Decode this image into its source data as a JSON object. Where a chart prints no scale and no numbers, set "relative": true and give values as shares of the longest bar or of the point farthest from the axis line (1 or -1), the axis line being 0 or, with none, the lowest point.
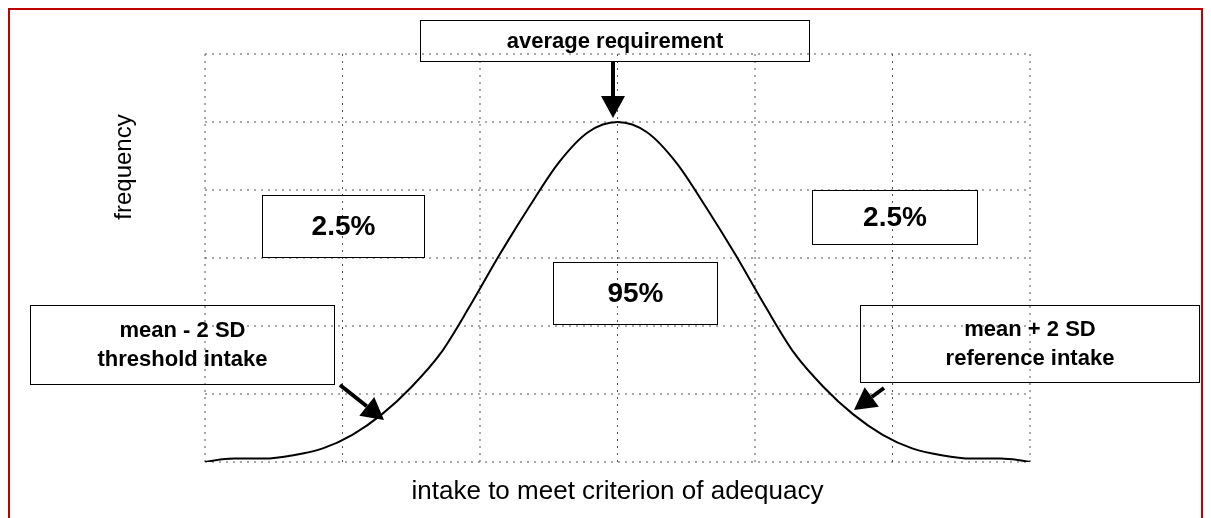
{
  "chart_data": {
    "type": "line",
    "relative": true,
    "xlabel": "intake to meet criterion of adequacy",
    "ylabel": "frequency",
    "categories": [
      null,
      null,
      null,
      null,
      null,
      null,
      null,
      null,
      null,
      null,
      null,
      null,
      null,
      null,
      null,
      null,
      null,
      null,
      null,
      null,
      null,
      null,
      null,
      null,
      null,
      null,
      null,
      null,
      null
    ],
    "series": [
      {
        "color": "#000000",
        "values": [
          0.0,
          0.01,
          0.01,
          0.02,
          0.04,
          0.08,
          0.14,
          0.22,
          0.32,
          0.46,
          0.61,
          0.75,
          0.88,
          0.97,
          1,
          0.97,
          0.88,
          0.75,
          0.61,
          0.46,
          0.32,
          0.22,
          0.14,
          0.08,
          0.04,
          0.02,
          0.01,
          0.01,
          0.0
        ]
      }
    ],
    "grid": true,
    "marker": "none",
    "line_style": "solid",
    "annotations": [
      "average requirement",
      "2.5%",
      "2.5%",
      "95%",
      "mean - 2 SD\nthreshold intake",
      "mean + 2 SD\nreference intake"
    ]
  }
}
